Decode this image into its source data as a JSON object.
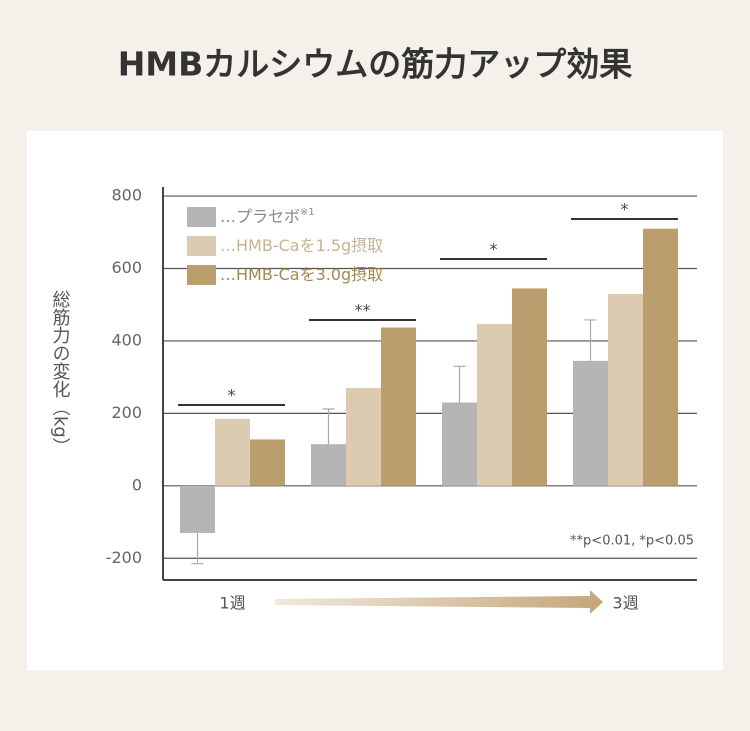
{
  "chart_data": {
    "type": "bar",
    "title": "HMBカルシウムの筋力アップ効果",
    "y_label": "総筋力の変化（kg）",
    "categories": [
      "1週",
      null,
      null,
      "3週"
    ],
    "series": [
      {
        "name": "…プラセボ",
        "name_note": "※1",
        "color": "#b5b5b5",
        "label_color": "#8a8a8a",
        "values": [
          -130,
          115,
          230,
          345
        ],
        "errors": [
          85,
          97,
          100,
          113
        ]
      },
      {
        "name": "…HMB-Caを1.5g摂取",
        "color": "#dccbb0",
        "label_color": "#c6b391",
        "values": [
          185,
          270,
          447,
          530
        ]
      },
      {
        "name": "…HMB-Caを3.0g摂取",
        "color": "#bb9e6e",
        "label_color": "#a68750",
        "values": [
          128,
          437,
          545,
          710
        ]
      }
    ],
    "significance": [
      "*",
      "**",
      "*",
      "*"
    ],
    "note": "**p<0.01, *p<0.05",
    "ylim": [
      -260,
      825
    ],
    "yticks": [
      -200,
      0,
      200,
      400,
      600,
      800
    ],
    "grid": true
  }
}
